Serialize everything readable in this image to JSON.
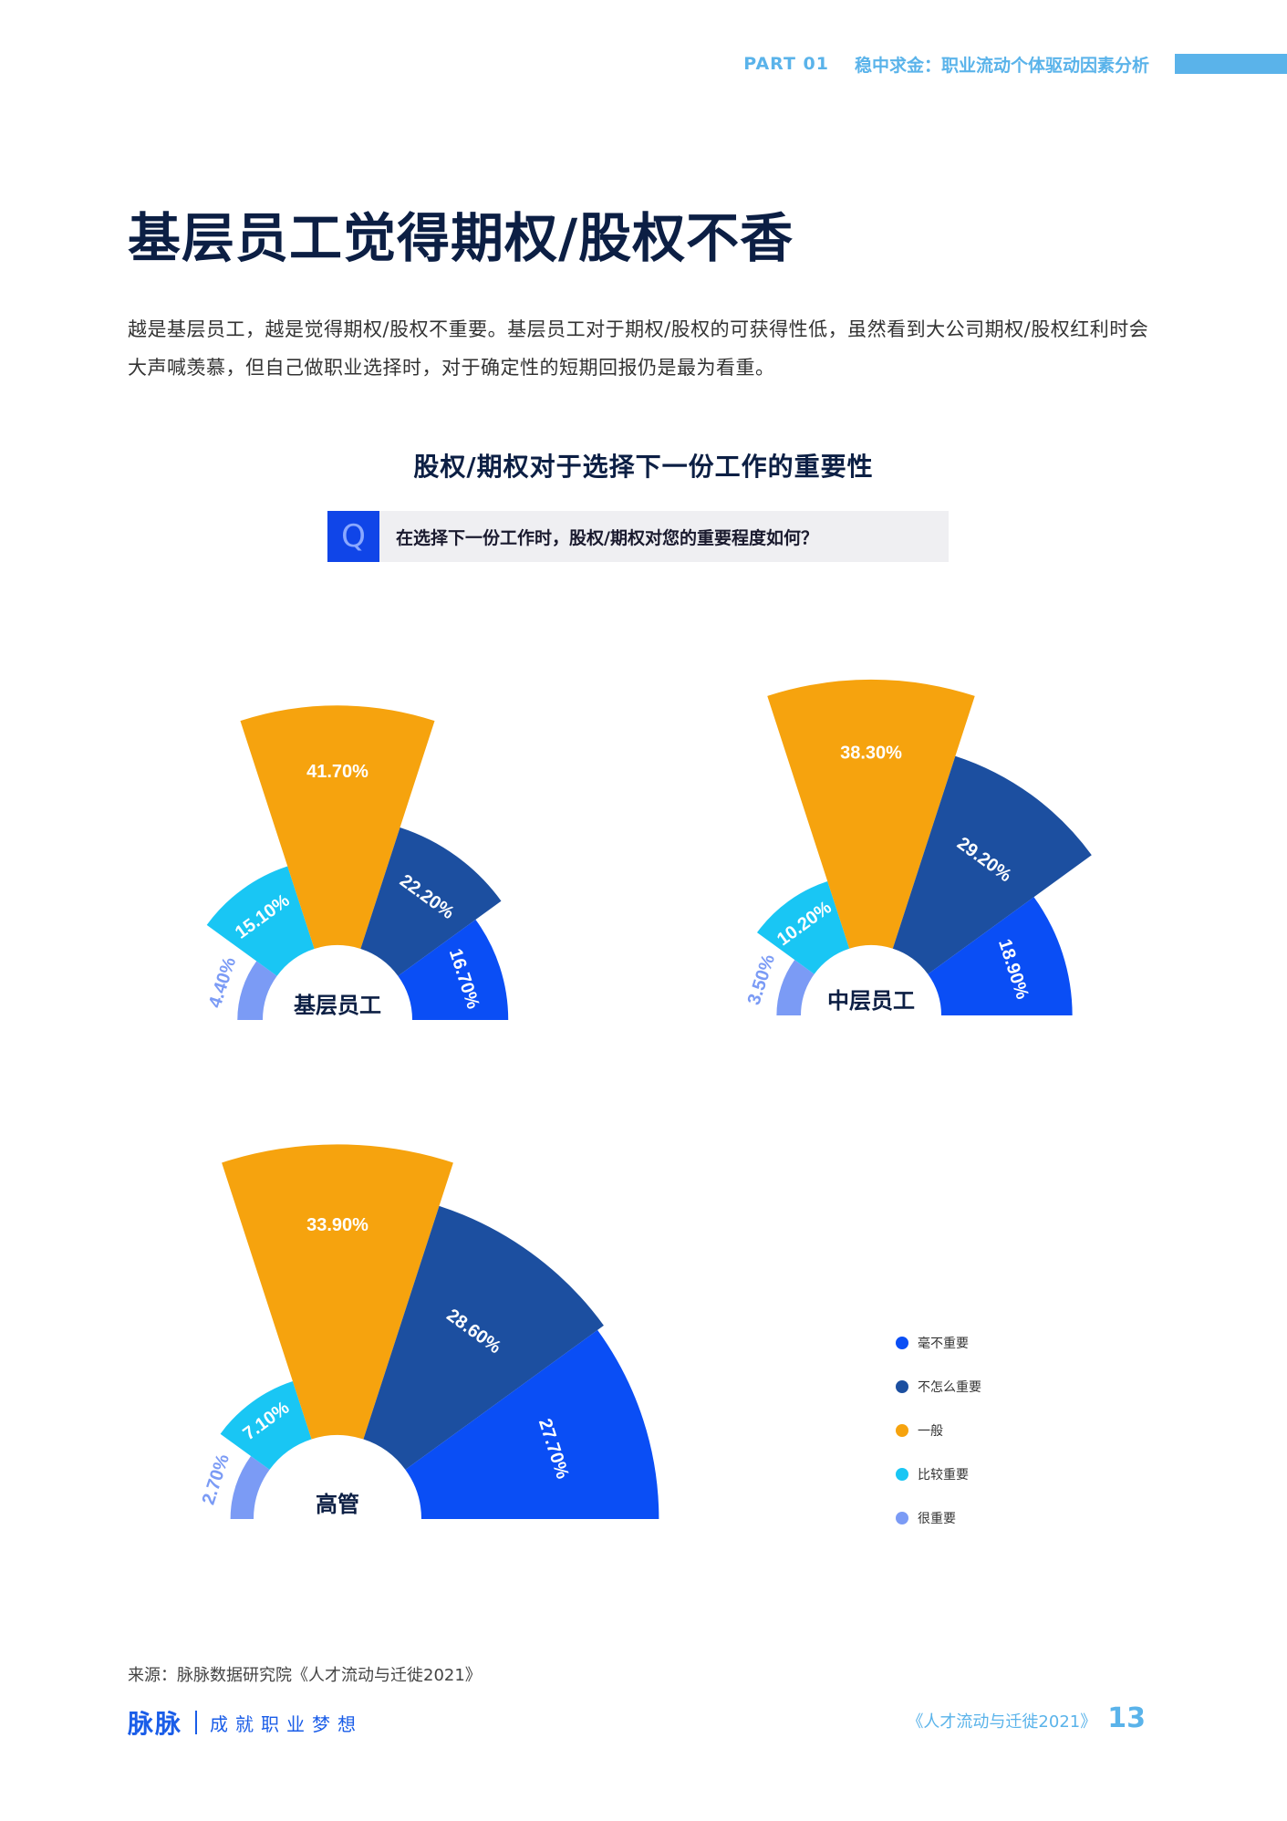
{
  "header": {
    "part": "PART 01",
    "section": "稳中求金：职业流动个体驱动因素分析"
  },
  "title": "基层员工觉得期权/股权不香",
  "intro": "越是基层员工，越是觉得期权/股权不重要。基层员工对于期权/股权的可获得性低，虽然看到大公司期权/股权红利时会大声喊羡慕，但自己做职业选择时，对于确定性的短期回报仍是最为看重。",
  "chart_title": "股权/期权对于选择下一份工作的重要性",
  "question": {
    "icon": "Q",
    "text": "在选择下一份工作时，股权/期权对您的重要程度如何？"
  },
  "colors": {
    "很重要": "#7b9bf5",
    "比较重要": "#19c6f4",
    "一般": "#f6a30e",
    "不怎么重要": "#1c4fa0",
    "毫不重要": "#0a4ef5"
  },
  "chart_data": [
    {
      "type": "pie",
      "title": "基层员工",
      "categories": [
        "很重要",
        "比较重要",
        "一般",
        "不怎么重要",
        "毫不重要"
      ],
      "values": [
        4.4,
        15.1,
        41.7,
        22.2,
        16.7
      ],
      "labels": [
        "4.40%",
        "15.10%",
        "41.70%",
        "22.20%",
        "16.70%"
      ]
    },
    {
      "type": "pie",
      "title": "中层员工",
      "categories": [
        "很重要",
        "比较重要",
        "一般",
        "不怎么重要",
        "毫不重要"
      ],
      "values": [
        3.5,
        10.2,
        38.3,
        29.2,
        18.9
      ],
      "labels": [
        "3.50%",
        "10.20%",
        "38.30%",
        "29.20%",
        "18.90%"
      ]
    },
    {
      "type": "pie",
      "title": "高管",
      "categories": [
        "很重要",
        "比较重要",
        "一般",
        "不怎么重要",
        "毫不重要"
      ],
      "values": [
        2.7,
        7.1,
        33.9,
        28.6,
        27.7
      ],
      "labels": [
        "2.70%",
        "7.10%",
        "33.90%",
        "28.60%",
        "27.70%"
      ]
    }
  ],
  "legend": [
    "毫不重要",
    "不怎么重要",
    "一般",
    "比较重要",
    "很重要"
  ],
  "source": "来源：脉脉数据研究院《人才流动与迁徙2021》",
  "footer": {
    "brand": "脉脉",
    "slogan": "成就职业梦想",
    "report": "《人才流动与迁徙2021》",
    "page": "13"
  }
}
